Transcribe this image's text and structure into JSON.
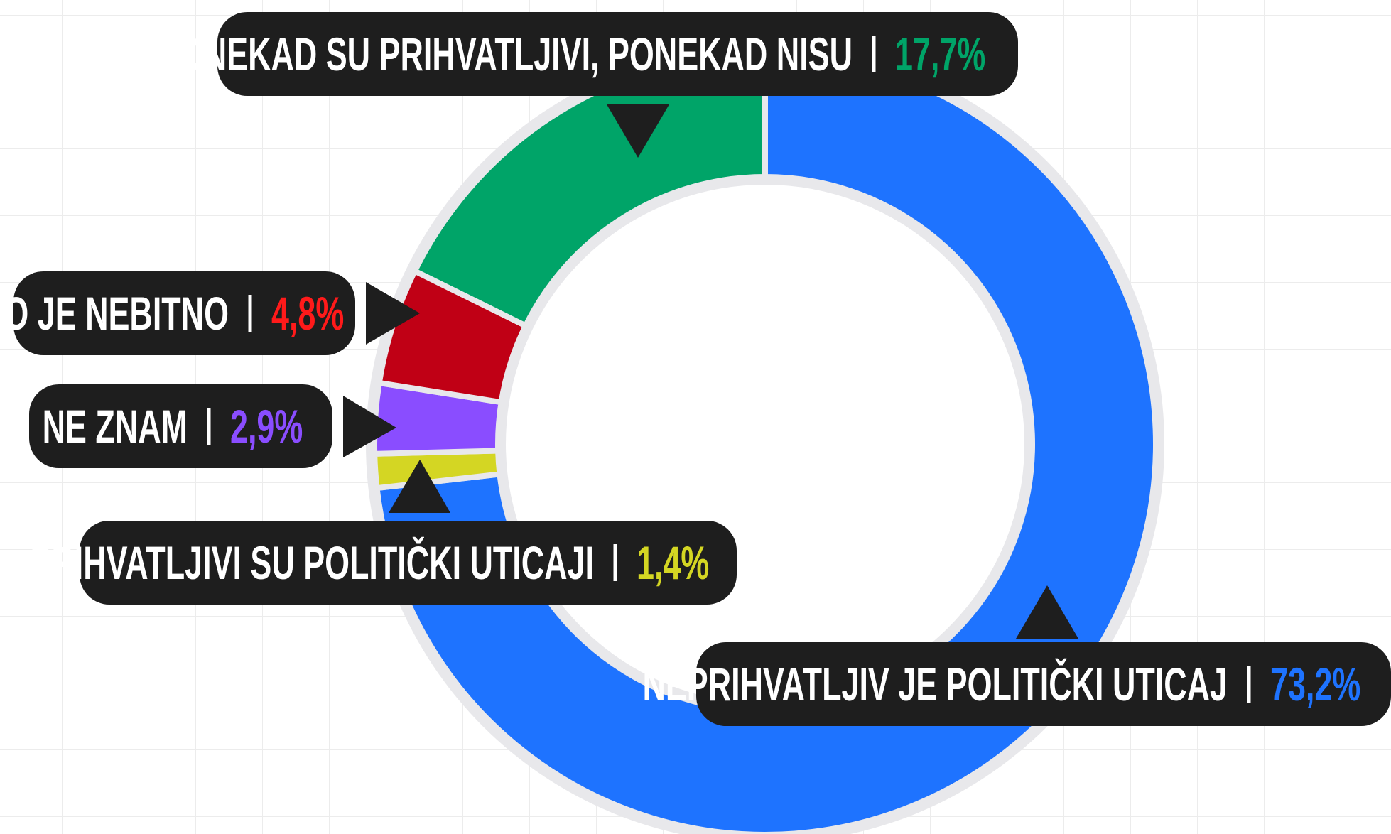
{
  "chart_data": {
    "type": "donut",
    "categories": [
      "NEPRIHVATLJIV JE POLITIČKI UTICAJ",
      "PRIHVATLJIVI SU POLITIČKI UTICAJI",
      "NE ZNAM",
      "TO JE NEBITNO",
      "PONEKAD SU PRIHVATLJIVI, PONEKAD NISU"
    ],
    "values": [
      73.2,
      1.4,
      2.9,
      4.8,
      17.7
    ],
    "value_labels": [
      "73,2%",
      "1,4%",
      "2,9%",
      "4,8%",
      "17,7%"
    ],
    "colors": [
      "#1e73ff",
      "#d4d623",
      "#8a4dff",
      "#c00015",
      "#00a468"
    ],
    "label_colors": [
      "#1e73ff",
      "#d4d623",
      "#8a4dff",
      "#ff1a1a",
      "#00a468"
    ]
  }
}
